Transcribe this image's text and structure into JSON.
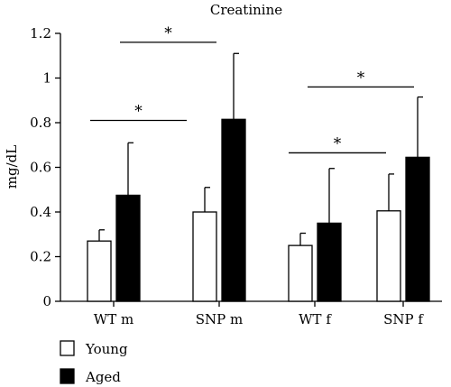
{
  "chart_data": {
    "type": "bar",
    "title": "Creatinine",
    "xlabel": "",
    "ylabel": "mg/dL",
    "ylim": [
      0,
      1.2
    ],
    "yticks": [
      "0",
      "0.2",
      "0.4",
      "0.6",
      "0.8",
      "1",
      "1.2"
    ],
    "categories": [
      "WT m",
      "SNP m",
      "WT f",
      "SNP f"
    ],
    "series": [
      {
        "name": "Young",
        "color": "#ffffff",
        "values": [
          0.27,
          0.4,
          0.25,
          0.405
        ],
        "errors": [
          0.05,
          0.11,
          0.055,
          0.165
        ]
      },
      {
        "name": "Aged",
        "color": "#000000",
        "values": [
          0.475,
          0.815,
          0.35,
          0.645
        ],
        "errors": [
          0.235,
          0.295,
          0.245,
          0.27
        ]
      }
    ],
    "significance": [
      {
        "label": "*",
        "from": "WT m",
        "to": "SNP m",
        "series": "Young",
        "y": 0.81
      },
      {
        "label": "*",
        "from": "SNP m",
        "to": "WT f",
        "series": "Young",
        "y": 1.16
      },
      {
        "label": "*",
        "from": "WT f",
        "to": "SNP f",
        "series": "Young",
        "y": 0.665
      },
      {
        "label": "*",
        "from": "SNP f",
        "to": "WT f",
        "series": "Aged",
        "y": 0.96
      }
    ],
    "legend_position": "bottom-left",
    "grid": false
  }
}
